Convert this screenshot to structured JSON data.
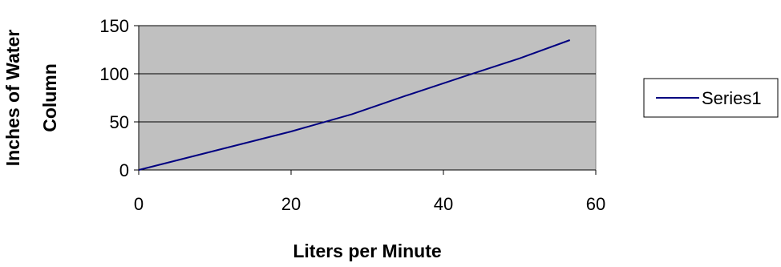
{
  "chart_data": {
    "type": "line",
    "title": "",
    "xlabel": "Liters per Minute",
    "ylabel_lines": [
      "Inches of Water",
      "Column"
    ],
    "xlim": [
      0,
      60
    ],
    "ylim": [
      0,
      150
    ],
    "x_ticks": [
      0,
      20,
      40,
      60
    ],
    "y_ticks": [
      0,
      50,
      100,
      150
    ],
    "x_tick_labels": [
      "0",
      "20",
      "40",
      "60"
    ],
    "y_tick_labels": [
      "0",
      "50",
      "100",
      "150"
    ],
    "grid": "horizontal",
    "plot_background": "#c0c0c0",
    "legend_position": "right",
    "series": [
      {
        "name": "Series1",
        "color": "#000080",
        "x": [
          0,
          10,
          20,
          28,
          35,
          43,
          50,
          56.6
        ],
        "y": [
          0,
          20,
          40,
          58,
          77,
          98,
          116,
          135
        ]
      }
    ]
  }
}
